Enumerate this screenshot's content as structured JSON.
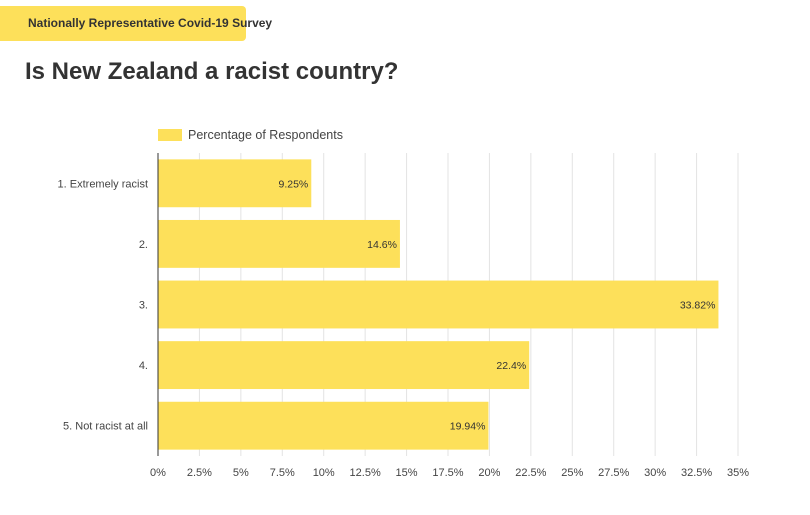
{
  "header": {
    "tag_label": "Nationally Representative Covid-19 Survey",
    "tag_color": "#fde05a",
    "title": "Is New Zealand a racist country?"
  },
  "chart_data": {
    "type": "bar",
    "orientation": "horizontal",
    "title": "Is New Zealand a racist country?",
    "categories": [
      "1. Extremely racist",
      "2.",
      "3.",
      "4.",
      "5. Not racist at all"
    ],
    "series": [
      {
        "name": "Percentage of Respondents",
        "values": [
          9.25,
          14.6,
          33.82,
          22.4,
          19.94
        ],
        "labels": [
          "9.25%",
          "14.6%",
          "33.82%",
          "22.4%",
          "19.94%"
        ],
        "color": "#fde05a"
      }
    ],
    "xlim": [
      0,
      35
    ],
    "x_ticks": [
      0,
      2.5,
      5,
      7.5,
      10,
      12.5,
      15,
      17.5,
      20,
      22.5,
      25,
      27.5,
      30,
      32.5,
      35
    ],
    "x_tick_labels": [
      "0%",
      "2.5%",
      "5%",
      "7.5%",
      "10%",
      "12.5%",
      "15%",
      "17.5%",
      "20%",
      "22.5%",
      "25%",
      "27.5%",
      "30%",
      "32.5%",
      "35%"
    ],
    "grid": true,
    "legend_position": "top-left",
    "xlabel": "",
    "ylabel": ""
  }
}
